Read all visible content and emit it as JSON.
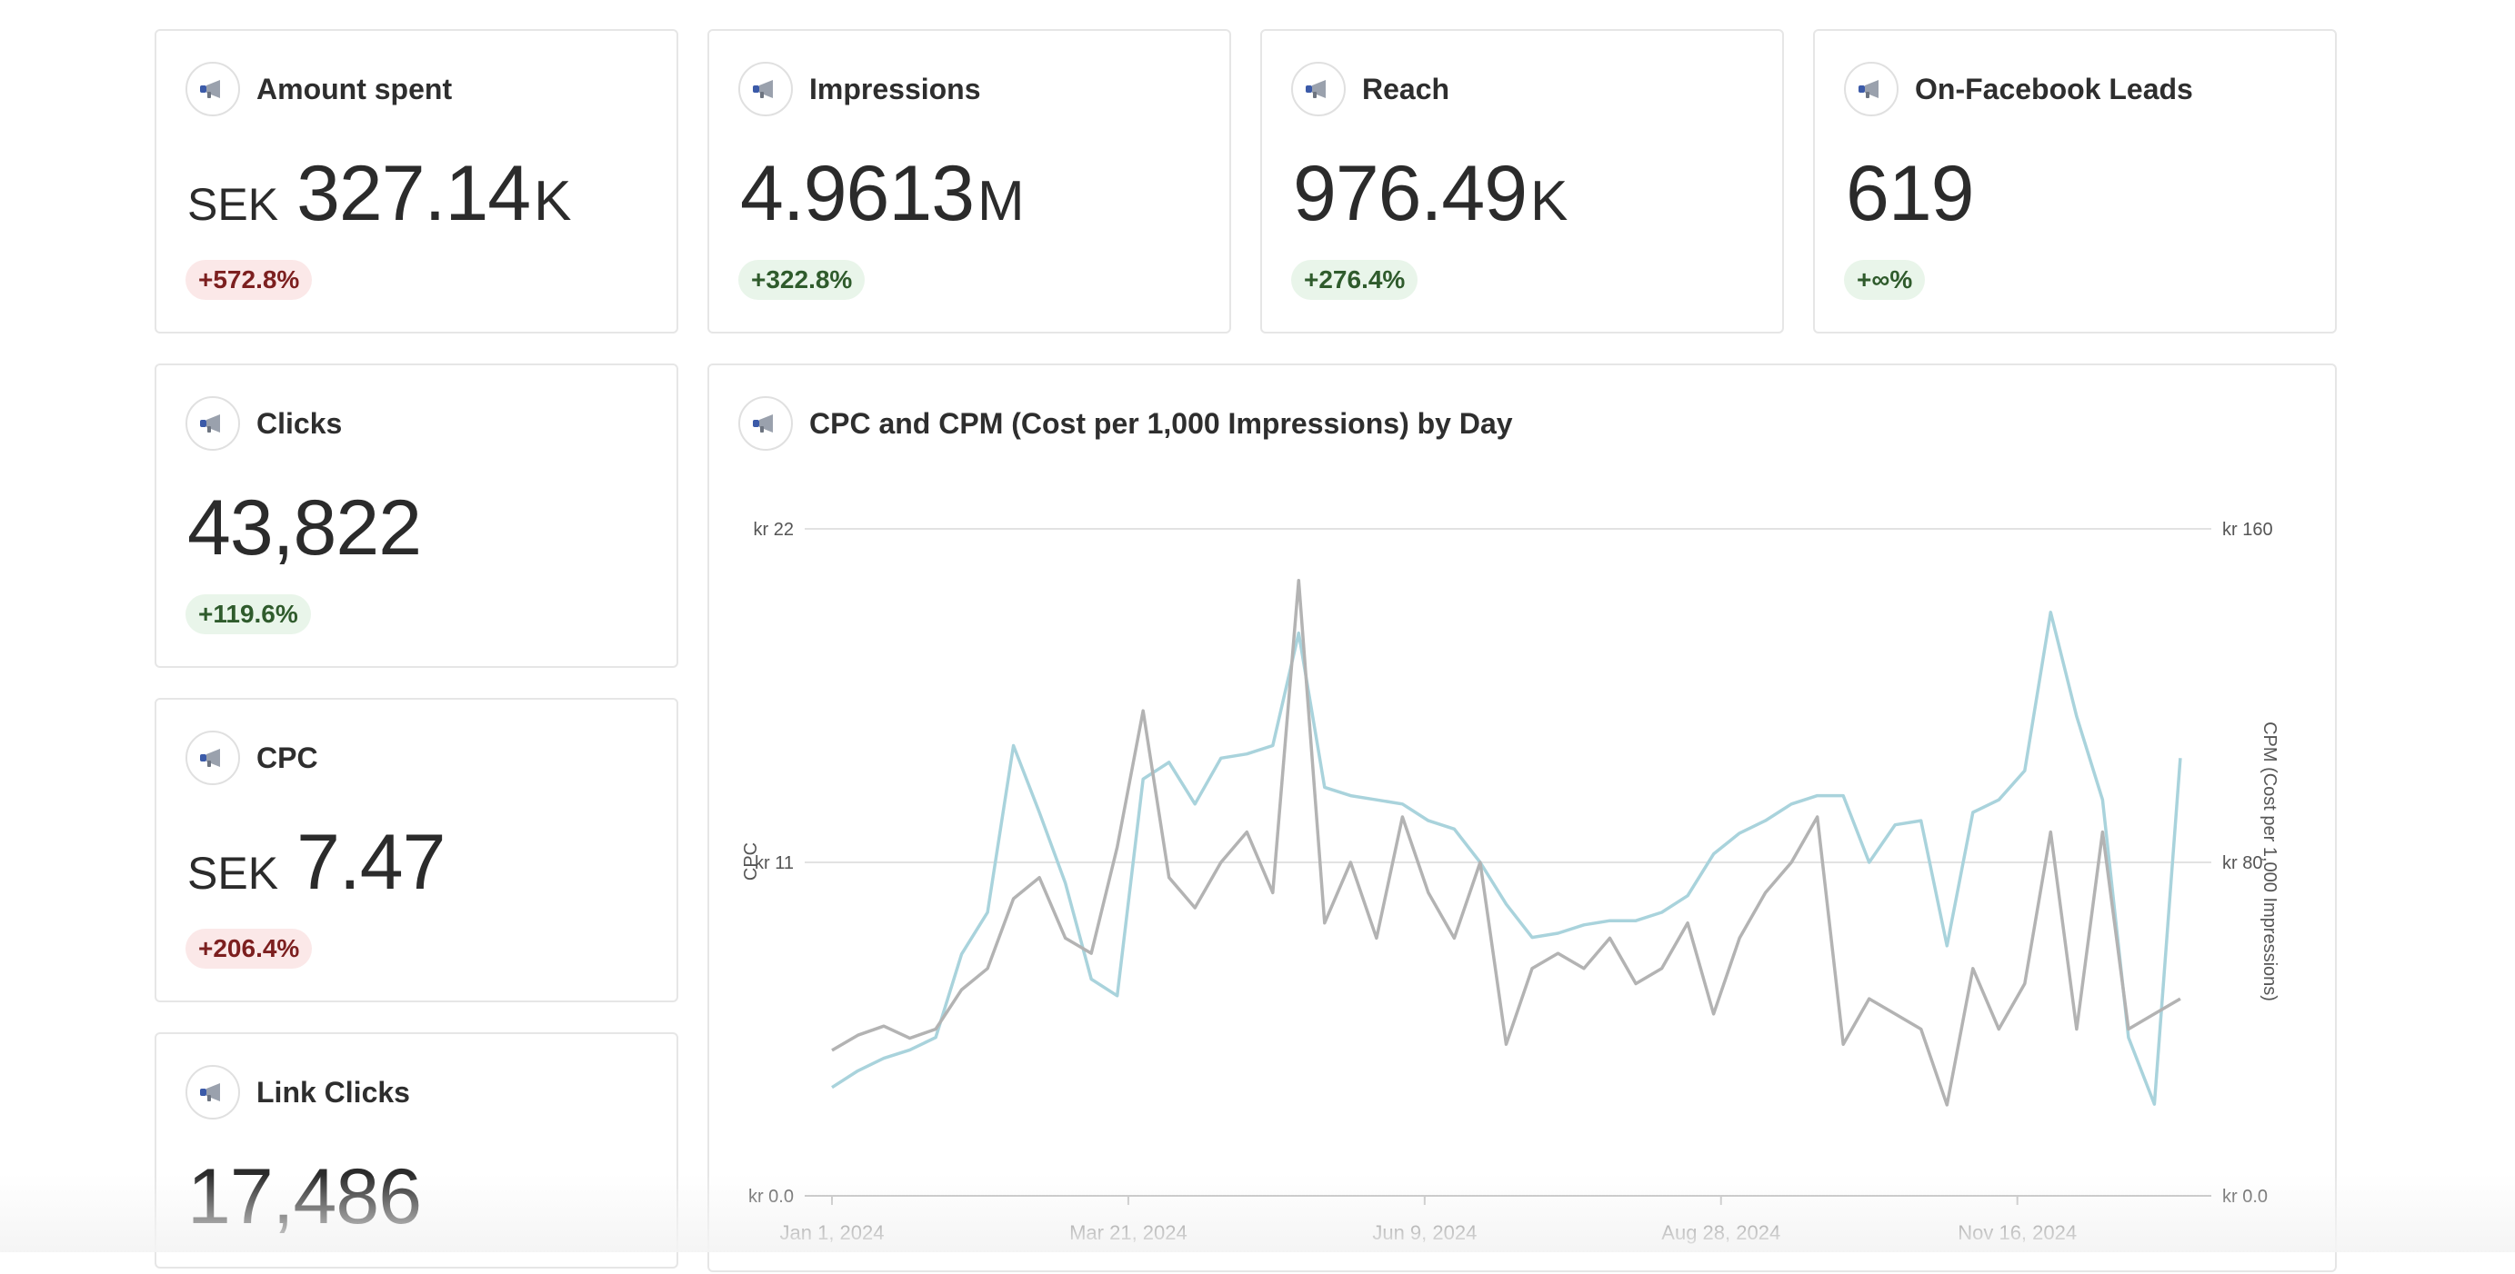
{
  "cards": {
    "amount_spent": {
      "title": "Amount spent",
      "prefix": "SEK",
      "value": "327.14",
      "suffix": "K",
      "change": "+572.8%",
      "icon": "megaphone-icon"
    },
    "impressions": {
      "title": "Impressions",
      "value": "4.9613",
      "suffix": "M",
      "change": "+322.8%",
      "icon": "megaphone-icon"
    },
    "reach": {
      "title": "Reach",
      "value": "976.49",
      "suffix": "K",
      "change": "+276.4%",
      "icon": "megaphone-icon"
    },
    "leads": {
      "title": "On-Facebook Leads",
      "value": "619",
      "change": "+∞%",
      "icon": "megaphone-icon"
    },
    "clicks": {
      "title": "Clicks",
      "value": "43,822",
      "change": "+119.6%",
      "icon": "megaphone-icon"
    },
    "cpc": {
      "title": "CPC",
      "prefix": "SEK",
      "value": "7.47",
      "change": "+206.4%",
      "icon": "megaphone-icon"
    },
    "link_clicks": {
      "title": "Link Clicks",
      "value": "17,486",
      "icon": "megaphone-icon"
    }
  },
  "colors": {
    "cpc_line": "#b3b3b3",
    "cpm_line": "#a9d3dc",
    "badge_bad_bg": "#fbe8e8",
    "badge_good_bg": "#e9f5ea"
  },
  "chart_data": {
    "type": "line",
    "title": "CPC and CPM (Cost per 1,000 Impressions) by Day",
    "ylabel": "CPC",
    "ylabel_right": "CPM (Cost per 1,000 Impressions)",
    "ylim": [
      0,
      22
    ],
    "ylim_right": [
      0,
      160
    ],
    "y_ticks": [
      "kr 0.0",
      "kr 11",
      "kr 22"
    ],
    "y_ticks_right": [
      "kr 0.0",
      "kr 80",
      "kr 160"
    ],
    "x_ticks": [
      "Jan 1, 2024",
      "Mar 21, 2024",
      "Jun 9, 2024",
      "Aug 28, 2024",
      "Nov 16, 2024"
    ],
    "x_range": [
      "2024-01-01",
      "2024-12-31"
    ],
    "grid": true,
    "series": [
      {
        "name": "CPC",
        "axis": "left",
        "color": "#b3b3b3",
        "points": [
          [
            "2024-01-01",
            4.8
          ],
          [
            "2024-01-08",
            5.3
          ],
          [
            "2024-01-15",
            5.6
          ],
          [
            "2024-01-22",
            5.2
          ],
          [
            "2024-01-29",
            5.5
          ],
          [
            "2024-02-05",
            6.8
          ],
          [
            "2024-02-12",
            7.5
          ],
          [
            "2024-02-19",
            9.8
          ],
          [
            "2024-02-26",
            10.5
          ],
          [
            "2024-03-04",
            8.5
          ],
          [
            "2024-03-11",
            8.0
          ],
          [
            "2024-03-18",
            11.5
          ],
          [
            "2024-03-25",
            16.0
          ],
          [
            "2024-04-01",
            10.5
          ],
          [
            "2024-04-08",
            9.5
          ],
          [
            "2024-04-15",
            11.0
          ],
          [
            "2024-04-22",
            12.0
          ],
          [
            "2024-04-29",
            10.0
          ],
          [
            "2024-05-06",
            20.3
          ],
          [
            "2024-05-13",
            9.0
          ],
          [
            "2024-05-20",
            11.0
          ],
          [
            "2024-05-27",
            8.5
          ],
          [
            "2024-06-03",
            12.5
          ],
          [
            "2024-06-10",
            10.0
          ],
          [
            "2024-06-17",
            8.5
          ],
          [
            "2024-06-24",
            11.0
          ],
          [
            "2024-07-01",
            5.0
          ],
          [
            "2024-07-08",
            7.5
          ],
          [
            "2024-07-15",
            8.0
          ],
          [
            "2024-07-22",
            7.5
          ],
          [
            "2024-07-29",
            8.5
          ],
          [
            "2024-08-05",
            7.0
          ],
          [
            "2024-08-12",
            7.5
          ],
          [
            "2024-08-19",
            9.0
          ],
          [
            "2024-08-26",
            6.0
          ],
          [
            "2024-09-02",
            8.5
          ],
          [
            "2024-09-09",
            10.0
          ],
          [
            "2024-09-16",
            11.0
          ],
          [
            "2024-09-23",
            12.5
          ],
          [
            "2024-09-30",
            5.0
          ],
          [
            "2024-10-07",
            6.5
          ],
          [
            "2024-10-14",
            6.0
          ],
          [
            "2024-10-21",
            5.5
          ],
          [
            "2024-10-28",
            3.0
          ],
          [
            "2024-11-04",
            7.5
          ],
          [
            "2024-11-11",
            5.5
          ],
          [
            "2024-11-18",
            7.0
          ],
          [
            "2024-11-25",
            12.0
          ],
          [
            "2024-12-02",
            5.5
          ],
          [
            "2024-12-09",
            12.0
          ],
          [
            "2024-12-16",
            5.5
          ],
          [
            "2024-12-23",
            6.0
          ],
          [
            "2024-12-30",
            6.5
          ]
        ]
      },
      {
        "name": "CPM (Cost per 1,000 Impressions)",
        "axis": "right",
        "color": "#a9d3dc",
        "points": [
          [
            "2024-01-01",
            26
          ],
          [
            "2024-01-08",
            30
          ],
          [
            "2024-01-15",
            33
          ],
          [
            "2024-01-22",
            35
          ],
          [
            "2024-01-29",
            38
          ],
          [
            "2024-02-05",
            58
          ],
          [
            "2024-02-12",
            68
          ],
          [
            "2024-02-19",
            108
          ],
          [
            "2024-02-26",
            92
          ],
          [
            "2024-03-04",
            75
          ],
          [
            "2024-03-11",
            52
          ],
          [
            "2024-03-18",
            48
          ],
          [
            "2024-03-25",
            100
          ],
          [
            "2024-04-01",
            104
          ],
          [
            "2024-04-08",
            94
          ],
          [
            "2024-04-15",
            105
          ],
          [
            "2024-04-22",
            106
          ],
          [
            "2024-04-29",
            108
          ],
          [
            "2024-05-06",
            135
          ],
          [
            "2024-05-13",
            98
          ],
          [
            "2024-05-20",
            96
          ],
          [
            "2024-05-27",
            95
          ],
          [
            "2024-06-03",
            94
          ],
          [
            "2024-06-10",
            90
          ],
          [
            "2024-06-17",
            88
          ],
          [
            "2024-06-24",
            80
          ],
          [
            "2024-07-01",
            70
          ],
          [
            "2024-07-08",
            62
          ],
          [
            "2024-07-15",
            63
          ],
          [
            "2024-07-22",
            65
          ],
          [
            "2024-07-29",
            66
          ],
          [
            "2024-08-05",
            66
          ],
          [
            "2024-08-12",
            68
          ],
          [
            "2024-08-19",
            72
          ],
          [
            "2024-08-26",
            82
          ],
          [
            "2024-09-02",
            87
          ],
          [
            "2024-09-09",
            90
          ],
          [
            "2024-09-16",
            94
          ],
          [
            "2024-09-23",
            96
          ],
          [
            "2024-09-30",
            96
          ],
          [
            "2024-10-07",
            80
          ],
          [
            "2024-10-14",
            89
          ],
          [
            "2024-10-21",
            90
          ],
          [
            "2024-10-28",
            60
          ],
          [
            "2024-11-04",
            92
          ],
          [
            "2024-11-11",
            95
          ],
          [
            "2024-11-18",
            102
          ],
          [
            "2024-11-25",
            140
          ],
          [
            "2024-12-02",
            115
          ],
          [
            "2024-12-09",
            95
          ],
          [
            "2024-12-16",
            38
          ],
          [
            "2024-12-23",
            22
          ],
          [
            "2024-12-30",
            105
          ]
        ]
      }
    ]
  }
}
